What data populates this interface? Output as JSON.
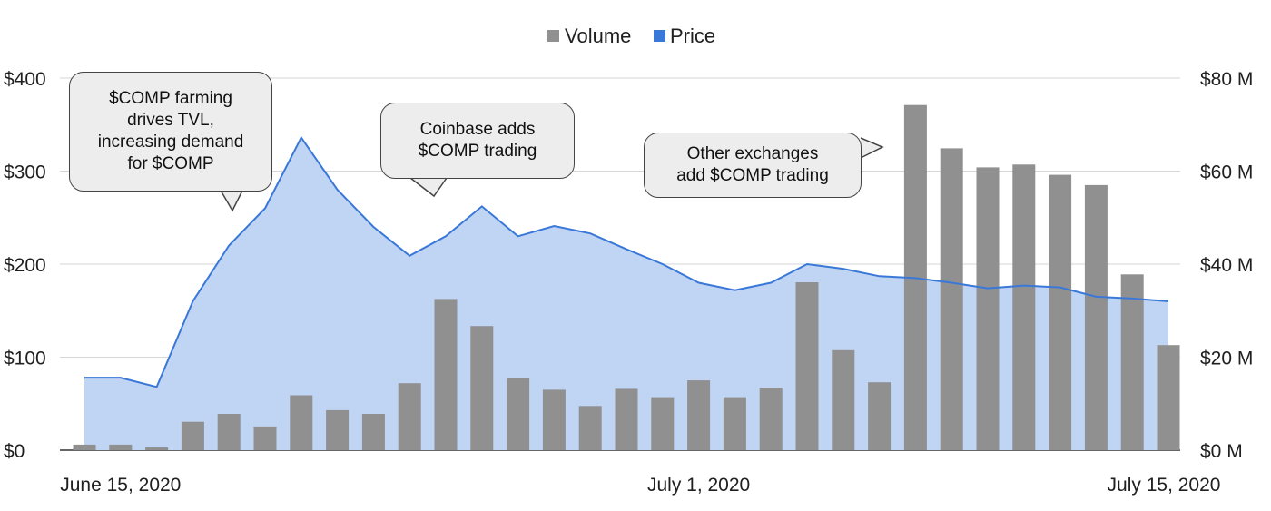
{
  "cropped_header_text": "",
  "chart_data": {
    "type": "bar+area",
    "title": "",
    "legend": {
      "placement": "top-center",
      "items": [
        {
          "label": "Volume",
          "color": "#909090"
        },
        {
          "label": "Price",
          "color": "#3a78d8"
        }
      ]
    },
    "x_tick_labels": [
      {
        "label": "June 15, 2020",
        "index": 1
      },
      {
        "label": "July 1, 2020",
        "index": 17
      },
      {
        "label": "July 15, 2020",
        "index": 30
      }
    ],
    "left_axis": {
      "label": "",
      "range": [
        0,
        400
      ],
      "ticks": [
        0,
        100,
        200,
        300,
        400
      ],
      "tick_labels": [
        "$0",
        "$100",
        "$200",
        "$300",
        "$400"
      ]
    },
    "right_axis": {
      "label": "",
      "range": [
        0,
        80
      ],
      "ticks": [
        0,
        20,
        40,
        60,
        80
      ],
      "tick_labels": [
        "$0 M",
        "$20 M",
        "$40 M",
        "$60 M",
        "$80 M"
      ]
    },
    "grid": true,
    "series": [
      {
        "name": "Price",
        "axis": "left",
        "type": "area",
        "line_color": "#3a78d8",
        "fill_color": "#c0d5f3",
        "values": [
          78,
          78,
          68,
          160,
          220,
          260,
          336,
          280,
          240,
          209,
          230,
          262,
          230,
          241,
          233,
          216,
          200,
          180,
          172,
          180,
          200,
          195,
          187,
          185,
          180,
          174,
          177,
          175,
          165,
          163,
          160
        ]
      },
      {
        "name": "Volume",
        "axis": "right",
        "type": "bar",
        "color": "#909090",
        "values": [
          1.2,
          1.2,
          0.6,
          6.1,
          7.8,
          5.1,
          11.8,
          8.6,
          7.8,
          14.4,
          32.5,
          26.7,
          15.6,
          13.0,
          9.5,
          13.2,
          11.4,
          15.0,
          11.4,
          13.4,
          36.1,
          21.5,
          14.6,
          74.2,
          64.9,
          60.8,
          61.4,
          59.2,
          57.0,
          37.8,
          22.6
        ]
      }
    ],
    "annotations": [
      {
        "text": "$COMP farming\ndrives TVL,\nincreasing demand\nfor $COMP"
      },
      {
        "text": "Coinbase adds\n$COMP trading"
      },
      {
        "text": "Other exchanges\nadd $COMP trading"
      }
    ]
  }
}
